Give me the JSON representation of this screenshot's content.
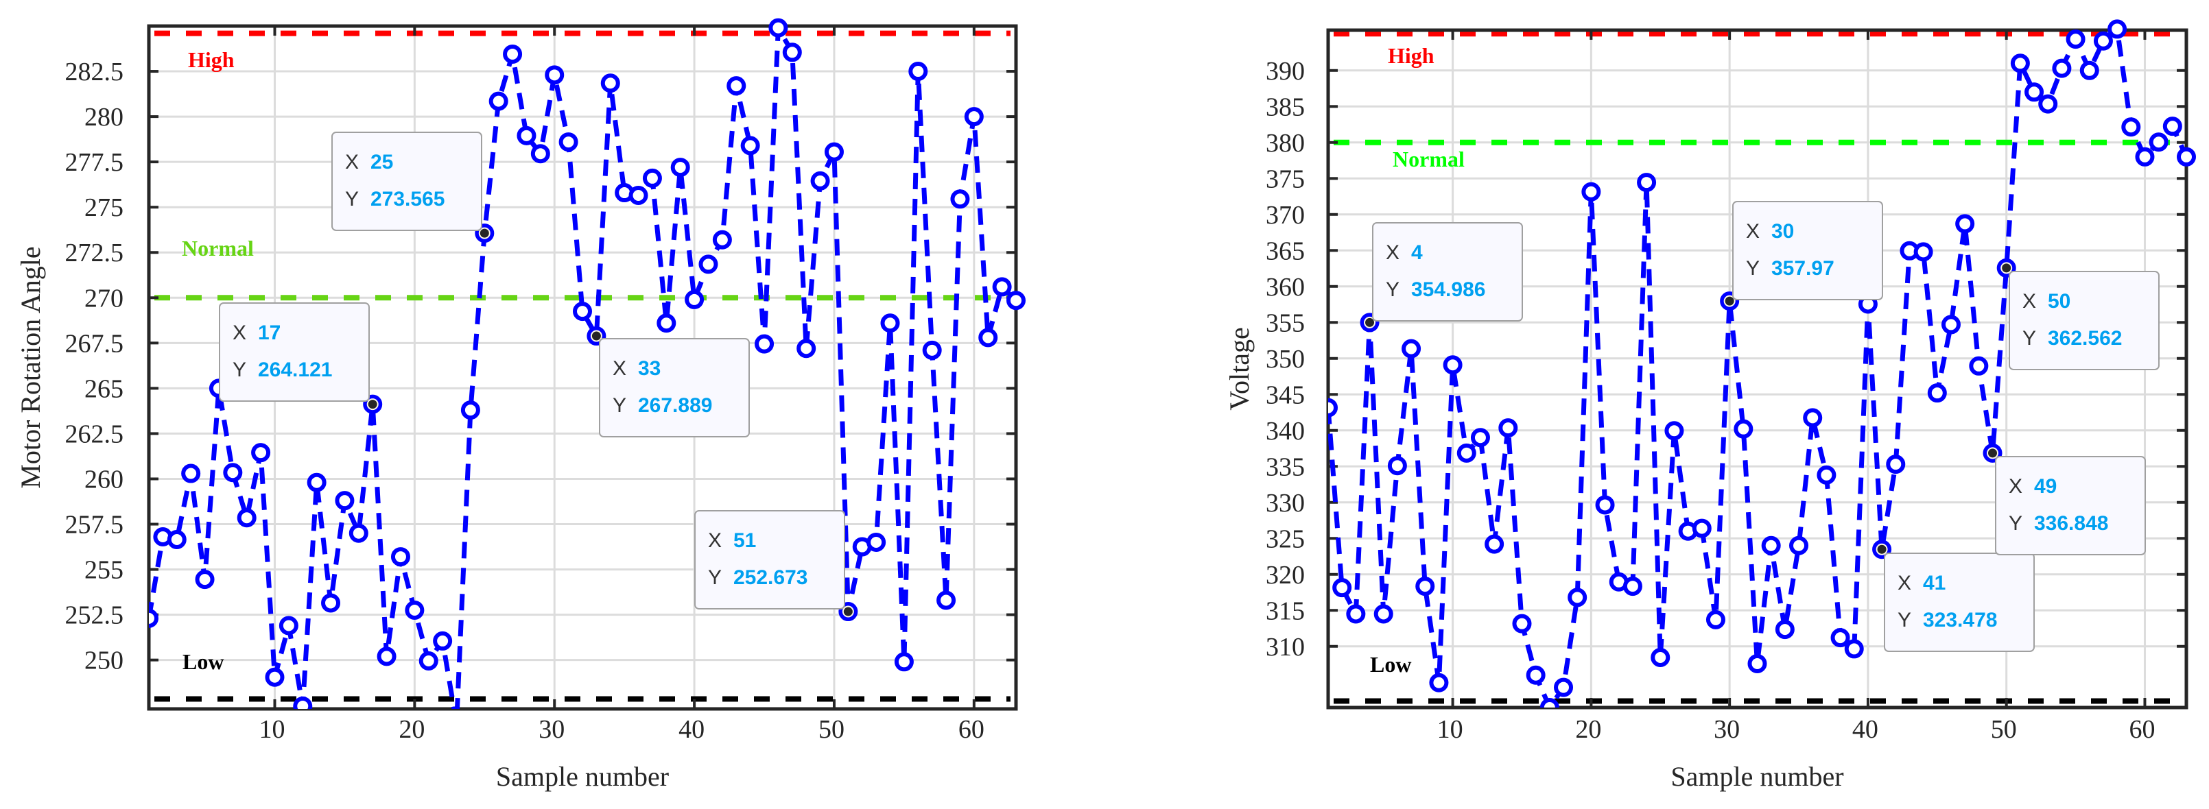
{
  "chart_data": [
    {
      "type": "line",
      "xlabel": "Sample number",
      "ylabel": "Motor Rotation Angle",
      "xlim": [
        1,
        63
      ],
      "ylim": [
        247.3,
        285.0
      ],
      "xticks": [
        10,
        20,
        30,
        40,
        50,
        60
      ],
      "yticks": [
        250,
        252.5,
        255,
        257.5,
        260,
        262.5,
        265,
        267.5,
        270,
        272.5,
        275,
        277.5,
        280,
        282.5
      ],
      "ytick_labels": [
        "250",
        "252.5",
        "255",
        "257.5",
        "260",
        "262.5",
        "265",
        "267.5",
        "270",
        "272.5",
        "275",
        "277.5",
        "280",
        "282.5"
      ],
      "grid": true,
      "series": [
        {
          "color": "#0000ff",
          "style": "dashed line with circle markers",
          "x": [
            1,
            2,
            3,
            4,
            5,
            6,
            7,
            8,
            9,
            10,
            11,
            12,
            13,
            14,
            15,
            16,
            17,
            18,
            19,
            20,
            21,
            22,
            23,
            24,
            25,
            26,
            27,
            28,
            29,
            30,
            31,
            32,
            33,
            34,
            35,
            36,
            37,
            38,
            39,
            40,
            41,
            42,
            43,
            44,
            45,
            46,
            47,
            48,
            49,
            50,
            51,
            52,
            53,
            54,
            55,
            56,
            57,
            58,
            59,
            60,
            61,
            62,
            63
          ],
          "y": [
            252.3,
            256.8,
            256.65,
            260.3,
            254.45,
            265.0,
            260.35,
            257.85,
            261.45,
            249.05,
            251.9,
            247.45,
            259.8,
            253.15,
            258.8,
            257.0,
            264.121,
            250.2,
            255.7,
            252.75,
            249.95,
            251.05,
            246.5,
            263.8,
            273.565,
            280.85,
            283.45,
            278.95,
            277.95,
            282.3,
            278.6,
            269.25,
            267.889,
            281.85,
            275.8,
            275.65,
            276.6,
            268.6,
            277.2,
            269.9,
            271.85,
            273.2,
            281.7,
            278.4,
            267.45,
            284.9,
            283.55,
            267.2,
            276.45,
            278.05,
            252.673,
            256.25,
            256.5,
            268.6,
            249.9,
            282.5,
            267.1,
            253.3,
            275.45,
            280.0,
            267.8,
            270.6,
            269.85
          ]
        }
      ],
      "thresholds": [
        {
          "label": "High",
          "value": 284.6,
          "color": "#ff0000"
        },
        {
          "label": "Normal",
          "value": 270,
          "color": "#66d414"
        },
        {
          "label": "Low",
          "value": 247.85,
          "color": "#000000"
        }
      ],
      "datatips": [
        {
          "x_key": "X",
          "y_key": "Y",
          "x": "17",
          "y": "264.121"
        },
        {
          "x_key": "X",
          "y_key": "Y",
          "x": "25",
          "y": "273.565"
        },
        {
          "x_key": "X",
          "y_key": "Y",
          "x": "33",
          "y": "267.889"
        },
        {
          "x_key": "X",
          "y_key": "Y",
          "x": "51",
          "y": "252.673"
        }
      ]
    },
    {
      "type": "line",
      "xlabel": "Sample number",
      "ylabel": "Voltage",
      "xlim": [
        1,
        63
      ],
      "ylim": [
        301.5,
        395.6
      ],
      "xticks": [
        10,
        20,
        30,
        40,
        50,
        60
      ],
      "yticks": [
        310,
        315,
        320,
        325,
        330,
        335,
        340,
        345,
        350,
        355,
        360,
        365,
        370,
        375,
        380,
        385,
        390
      ],
      "ytick_labels": [
        "310",
        "315",
        "320",
        "325",
        "330",
        "335",
        "340",
        "345",
        "350",
        "355",
        "360",
        "365",
        "370",
        "375",
        "380",
        "385",
        "390"
      ],
      "grid": true,
      "series": [
        {
          "color": "#0000ff",
          "style": "dashed line with circle markers",
          "x": [
            1,
            2,
            3,
            4,
            5,
            6,
            7,
            8,
            9,
            10,
            11,
            12,
            13,
            14,
            15,
            16,
            17,
            18,
            19,
            20,
            21,
            22,
            23,
            24,
            25,
            26,
            27,
            28,
            29,
            30,
            31,
            32,
            33,
            34,
            35,
            36,
            37,
            38,
            39,
            40,
            41,
            42,
            43,
            44,
            45,
            46,
            47,
            48,
            49,
            50,
            51,
            52,
            53,
            54,
            55,
            56,
            57,
            58,
            59,
            60,
            61,
            62,
            63
          ],
          "y": [
            343.15,
            318.15,
            314.5,
            354.986,
            314.5,
            335.1,
            351.35,
            318.35,
            304.95,
            349.1,
            336.85,
            339.0,
            324.2,
            340.35,
            313.15,
            306.0,
            301.5,
            304.3,
            316.8,
            373.15,
            329.65,
            318.95,
            318.35,
            374.45,
            308.45,
            339.95,
            326.0,
            326.4,
            313.7,
            357.97,
            340.2,
            307.6,
            324.0,
            312.35,
            324.0,
            341.75,
            333.8,
            311.2,
            309.65,
            357.55,
            323.478,
            335.3,
            364.95,
            364.8,
            345.2,
            354.7,
            368.7,
            348.95,
            336.848,
            362.562,
            391.0,
            387.0,
            385.35,
            390.3,
            394.35,
            390.0,
            394.1,
            395.75,
            382.15,
            378.0,
            380.05,
            382.25,
            378.0
          ]
        }
      ],
      "thresholds": [
        {
          "label": "High",
          "value": 395.1,
          "color": "#ff0000"
        },
        {
          "label": "Normal",
          "value": 380,
          "color": "#00ff00"
        },
        {
          "label": "Low",
          "value": 302.4,
          "color": "#000000"
        }
      ],
      "datatips": [
        {
          "x_key": "X",
          "y_key": "Y",
          "x": "4",
          "y": "354.986"
        },
        {
          "x_key": "X",
          "y_key": "Y",
          "x": "30",
          "y": "357.97"
        },
        {
          "x_key": "X",
          "y_key": "Y",
          "x": "50",
          "y": "362.562"
        },
        {
          "x_key": "X",
          "y_key": "Y",
          "x": "41",
          "y": "323.478"
        },
        {
          "x_key": "X",
          "y_key": "Y",
          "x": "49",
          "y": "336.848"
        }
      ]
    }
  ]
}
